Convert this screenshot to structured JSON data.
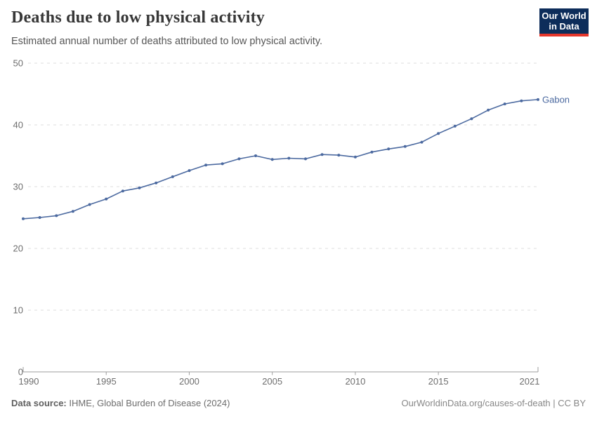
{
  "header": {
    "title": "Deaths due to low physical activity",
    "subtitle": "Estimated annual number of deaths attributed to low physical activity.",
    "logo_line1": "Our World",
    "logo_line2": "in Data"
  },
  "chart_data": {
    "type": "line",
    "title": "Deaths due to low physical activity",
    "xlabel": "",
    "ylabel": "",
    "xlim": [
      1990,
      2021
    ],
    "ylim": [
      0,
      50
    ],
    "x_ticks": [
      1990,
      1995,
      2000,
      2005,
      2010,
      2015,
      2021
    ],
    "y_ticks": [
      0,
      10,
      20,
      30,
      40,
      50
    ],
    "grid": "dashed-horizontal",
    "legend": "end-of-line-label",
    "series": [
      {
        "name": "Gabon",
        "color": "#4c6aa0",
        "x": [
          1990,
          1991,
          1992,
          1993,
          1994,
          1995,
          1996,
          1997,
          1998,
          1999,
          2000,
          2001,
          2002,
          2003,
          2004,
          2005,
          2006,
          2007,
          2008,
          2009,
          2010,
          2011,
          2012,
          2013,
          2014,
          2015,
          2016,
          2017,
          2018,
          2019,
          2020,
          2021
        ],
        "values": [
          24.8,
          25.0,
          25.3,
          26.0,
          27.1,
          28.0,
          29.3,
          29.8,
          30.6,
          31.6,
          32.6,
          33.5,
          33.7,
          34.5,
          35.0,
          34.4,
          34.6,
          34.5,
          35.2,
          35.1,
          34.8,
          35.6,
          36.1,
          36.5,
          37.2,
          38.6,
          39.8,
          41.0,
          42.4,
          43.4,
          43.9,
          44.1
        ]
      }
    ]
  },
  "colors": {
    "line": "#4c6aa0",
    "grid": "#dedede",
    "axis": "#9e9e9e",
    "axis_text": "#6e6e6e",
    "logo_bg": "#0d2d5a",
    "logo_red": "#e5362b"
  },
  "footer": {
    "source_label": "Data source:",
    "source_text": "IHME, Global Burden of Disease (2024)",
    "credit": "OurWorldinData.org/causes-of-death | CC BY"
  }
}
